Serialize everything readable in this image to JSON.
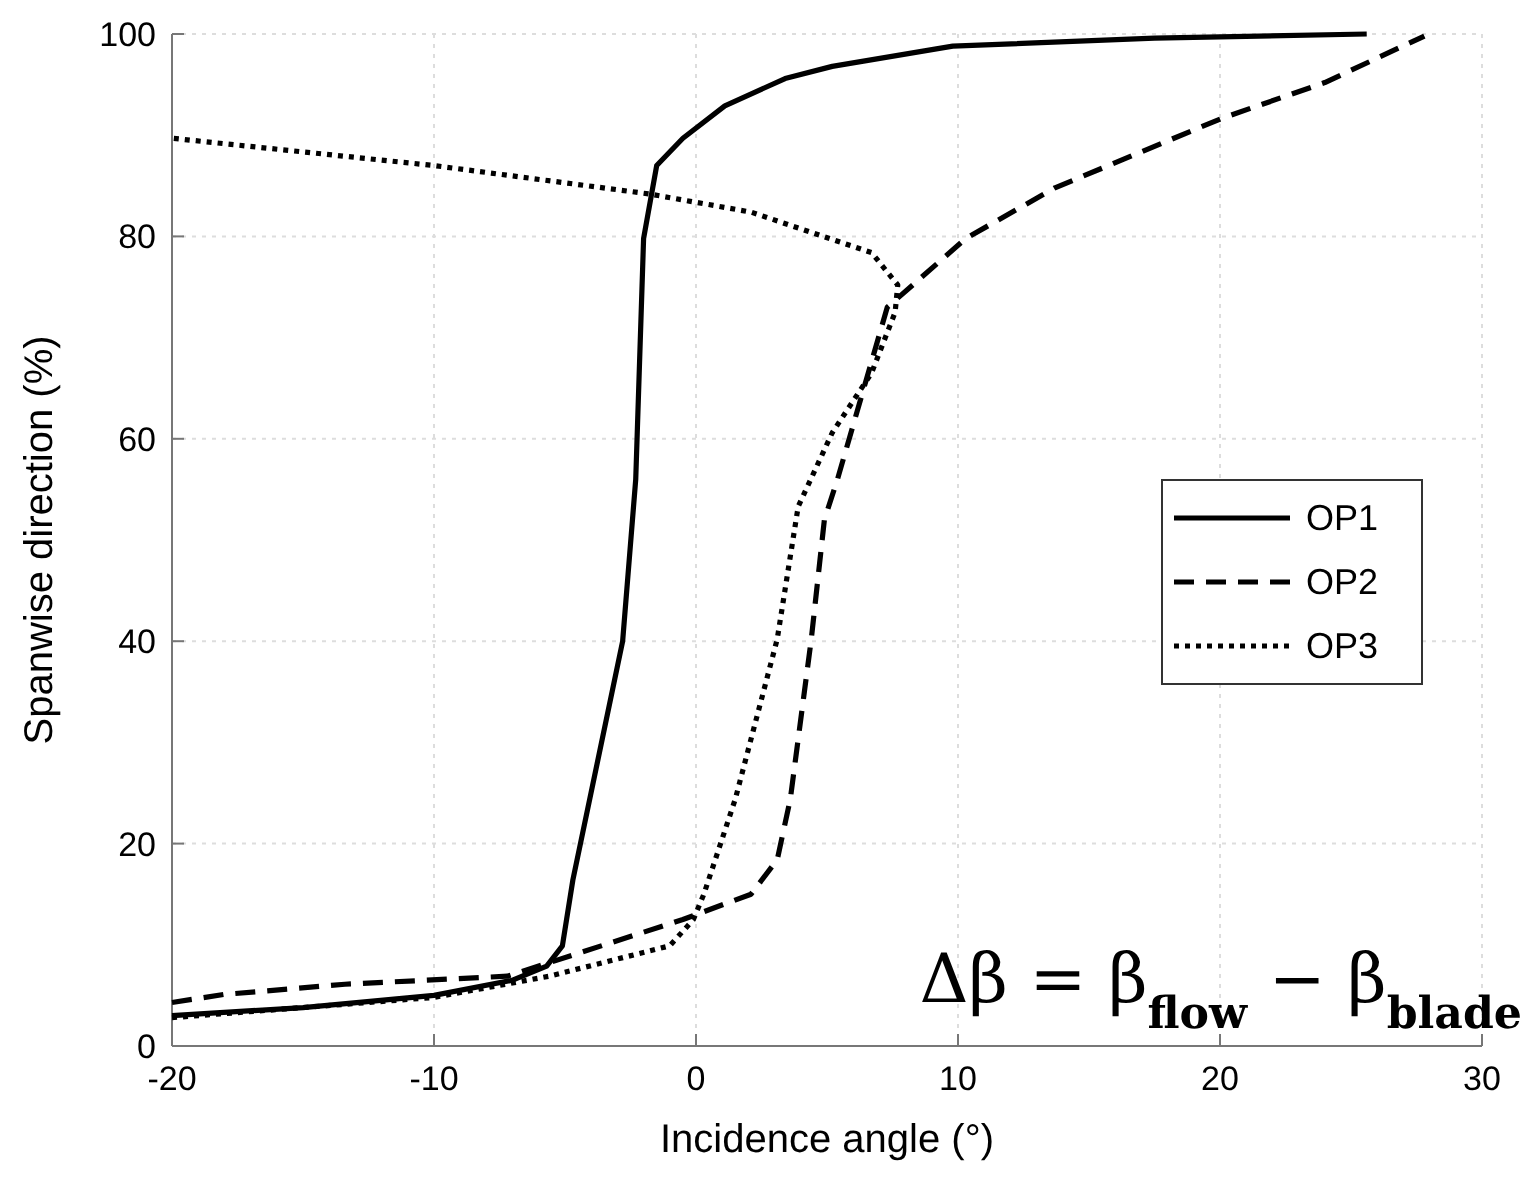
{
  "chart_data": {
    "type": "line",
    "xlabel": "Incidence angle (°)",
    "ylabel": "Spanwise direction (%)",
    "xlim": [
      -20,
      30
    ],
    "xticks": [
      -20,
      -10,
      0,
      10,
      20,
      30
    ],
    "ylim": [
      0,
      100
    ],
    "yticks": [
      0,
      20,
      40,
      60,
      80,
      100
    ],
    "grid": true,
    "legend": "right",
    "annotations": [
      "Δβ = β$_{flow}$ − β$_{blade}$"
    ],
    "series": [
      {
        "name": "OP1",
        "color": "#000000",
        "line_style": "solid",
        "x": [
          -20,
          -15,
          -10,
          -7,
          -5.7,
          -5.1,
          -4.7,
          -2.8,
          -2.3,
          -2.0,
          -1.5,
          -0.5,
          1.1,
          3.4,
          5.2,
          9.8,
          17.5,
          25.6
        ],
        "values": [
          3,
          3.8,
          5,
          6.5,
          7.9,
          9.9,
          16.4,
          40,
          56,
          79.8,
          87,
          89.7,
          92.9,
          95.6,
          96.8,
          98.8,
          99.6,
          100
        ]
      },
      {
        "name": "OP2",
        "color": "#000000",
        "line_style": "dashed",
        "x": [
          -20,
          -18,
          -13.4,
          -7.2,
          -0.5,
          2.1,
          3.1,
          3.6,
          4.4,
          4.9,
          5.4,
          7.3,
          10.3,
          13.7,
          20.1,
          24.0,
          27.8
        ],
        "values": [
          4.3,
          5.1,
          6.1,
          6.9,
          12.5,
          15,
          18.4,
          24.4,
          40.2,
          52,
          56,
          73,
          79.8,
          84.8,
          91.7,
          95.2,
          99.8
        ]
      },
      {
        "name": "OP3",
        "color": "#000000",
        "line_style": "dotted",
        "x": [
          -20,
          -10,
          -5.6,
          -1.0,
          -0.1,
          0.3,
          1.5,
          3.1,
          3.9,
          5.2,
          6.7,
          7.6,
          7.7,
          6.7,
          2.1,
          -1.8,
          -10,
          -20
        ],
        "values": [
          2.8,
          4.8,
          6.9,
          9.9,
          12.5,
          15,
          24.4,
          40.2,
          53.3,
          60.6,
          66.5,
          72.5,
          75.2,
          78.4,
          82.4,
          84.2,
          87,
          89.7
        ]
      }
    ]
  }
}
